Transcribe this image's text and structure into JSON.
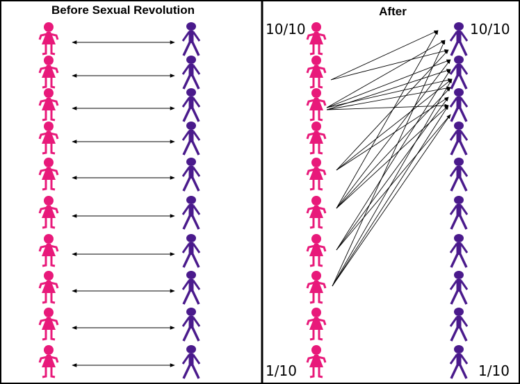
{
  "left_panel": {
    "title": "Before Sexual Revolution"
  },
  "right_panel": {
    "title": "After",
    "female_top_label": "10/10",
    "male_top_label": "10/10",
    "female_bottom_label": "1/10",
    "male_bottom_label": "1/10"
  }
}
